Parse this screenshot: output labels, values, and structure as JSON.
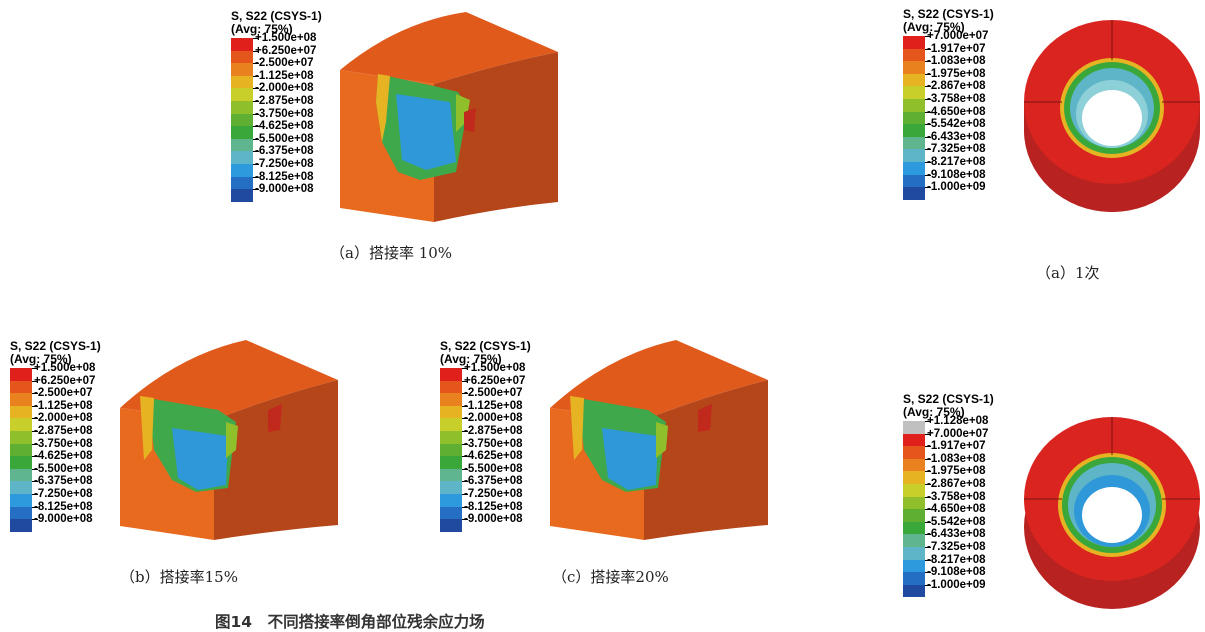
{
  "legend_header": {
    "line1": "S, S22 (CSYS-1)",
    "line2": "(Avg: 75%)"
  },
  "legend_a": {
    "values": [
      "+1.500e+08",
      "+6.250e+07",
      "-2.500e+07",
      "-1.125e+08",
      "-2.000e+08",
      "-2.875e+08",
      "-3.750e+08",
      "-4.625e+08",
      "-5.500e+08",
      "-6.375e+08",
      "-7.250e+08",
      "-8.125e+08",
      "-9.000e+08"
    ],
    "colors": [
      "#e0201a",
      "#e4561c",
      "#e9821e",
      "#e6b322",
      "#c8ce2a",
      "#8fc02c",
      "#5fb032",
      "#3aa73a",
      "#5fb58e",
      "#5eb5c8",
      "#2d9ade",
      "#246fc4",
      "#1f4aa0"
    ]
  },
  "legend_ring1": {
    "values": [
      "+7.000e+07",
      "-1.917e+07",
      "-1.083e+08",
      "-1.975e+08",
      "-2.867e+08",
      "-3.758e+08",
      "-4.650e+08",
      "-5.542e+08",
      "-6.433e+08",
      "-7.325e+08",
      "-8.217e+08",
      "-9.108e+08",
      "-1.000e+09"
    ],
    "colors": [
      "#e0201a",
      "#e4561c",
      "#e9821e",
      "#e6b322",
      "#c8ce2a",
      "#8fc02c",
      "#5fb032",
      "#3aa73a",
      "#5fb58e",
      "#5eb5c8",
      "#2d9ade",
      "#246fc4",
      "#1f4aa0"
    ]
  },
  "legend_ring2": {
    "values": [
      "+1.128e+08",
      "+7.000e+07",
      "-1.917e+07",
      "-1.083e+08",
      "-1.975e+08",
      "-2.867e+08",
      "-3.758e+08",
      "-4.650e+08",
      "-5.542e+08",
      "-6.433e+08",
      "-7.325e+08",
      "-8.217e+08",
      "-9.108e+08",
      "-1.000e+09"
    ],
    "colors": [
      "#c0c0c0",
      "#e0201a",
      "#e4561c",
      "#e9821e",
      "#e6b322",
      "#c8ce2a",
      "#8fc02c",
      "#5fb032",
      "#3aa73a",
      "#5fb58e",
      "#5eb5c8",
      "#2d9ade",
      "#246fc4",
      "#1f4aa0"
    ]
  },
  "captions": {
    "a_left": "（a）搭接率 10%",
    "b": "（b）搭接率15%",
    "c": "（c）搭接率20%",
    "a_right": "（a）1次",
    "figure": "图14　不同搭接率倒角部位残余应力场"
  }
}
